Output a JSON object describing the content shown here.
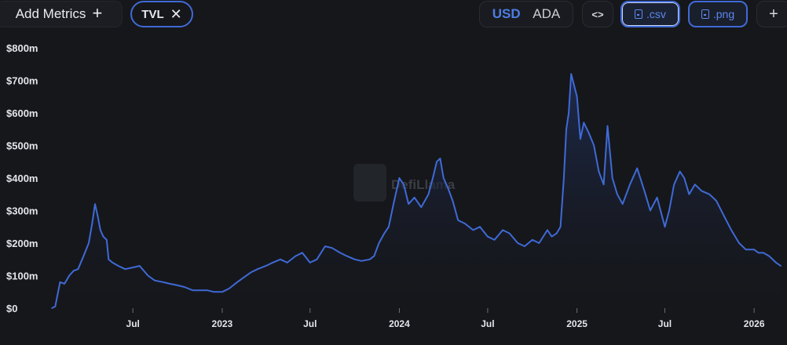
{
  "toolbar": {
    "add_metrics_label": "Add Metrics",
    "add_icon": "plus-icon",
    "metric_chip": {
      "label": "TVL",
      "remove_icon": "close-icon"
    },
    "currency_options": [
      "USD",
      "ADA"
    ],
    "currency_selected": "USD",
    "embed_label": "<>",
    "csv_label": ".csv",
    "png_label": ".png",
    "more_label": "+"
  },
  "watermark": "DefiLlama",
  "colors": {
    "background": "#16171b",
    "line": "#3f6ad6",
    "accent": "#4b7ee6",
    "fill_top": "#1d2c52"
  },
  "chart_data": {
    "type": "area",
    "title": "",
    "xlabel": "",
    "ylabel": "",
    "y_tick_labels": [
      "$0",
      "$100m",
      "$200m",
      "$300m",
      "$400m",
      "$500m",
      "$600m",
      "$700m",
      "$800m"
    ],
    "ylim": [
      0,
      800000000
    ],
    "x_tick_labels": [
      "Jul",
      "2023",
      "Jul",
      "2024",
      "Jul",
      "2025",
      "Jul",
      "2026"
    ],
    "x_tick_dates": [
      "2022-07-01",
      "2023-01-01",
      "2023-07-01",
      "2024-01-01",
      "2024-07-01",
      "2025-01-01",
      "2025-07-01",
      "2026-01-01"
    ],
    "grid": false,
    "series": [
      {
        "name": "TVL",
        "x": [
          "2022-01-15",
          "2022-01-22",
          "2022-02-01",
          "2022-02-10",
          "2022-02-20",
          "2022-03-01",
          "2022-03-10",
          "2022-03-20",
          "2022-04-01",
          "2022-04-08",
          "2022-04-14",
          "2022-04-20",
          "2022-04-25",
          "2022-05-01",
          "2022-05-08",
          "2022-05-12",
          "2022-05-20",
          "2022-06-01",
          "2022-06-15",
          "2022-07-01",
          "2022-07-15",
          "2022-08-01",
          "2022-08-15",
          "2022-09-01",
          "2022-09-15",
          "2022-10-01",
          "2022-10-15",
          "2022-11-01",
          "2022-11-15",
          "2022-12-01",
          "2022-12-15",
          "2023-01-01",
          "2023-01-15",
          "2023-02-01",
          "2023-02-15",
          "2023-03-01",
          "2023-03-15",
          "2023-04-01",
          "2023-04-15",
          "2023-05-01",
          "2023-05-15",
          "2023-06-01",
          "2023-06-15",
          "2023-07-01",
          "2023-07-15",
          "2023-08-01",
          "2023-08-15",
          "2023-09-01",
          "2023-09-15",
          "2023-10-01",
          "2023-10-15",
          "2023-11-01",
          "2023-11-10",
          "2023-11-20",
          "2023-12-01",
          "2023-12-10",
          "2023-12-20",
          "2024-01-01",
          "2024-01-10",
          "2024-01-20",
          "2024-02-01",
          "2024-02-15",
          "2024-03-01",
          "2024-03-10",
          "2024-03-18",
          "2024-03-25",
          "2024-04-01",
          "2024-04-10",
          "2024-04-20",
          "2024-05-01",
          "2024-05-15",
          "2024-06-01",
          "2024-06-15",
          "2024-07-01",
          "2024-07-15",
          "2024-08-01",
          "2024-08-15",
          "2024-09-01",
          "2024-09-15",
          "2024-10-01",
          "2024-10-15",
          "2024-11-01",
          "2024-11-10",
          "2024-11-20",
          "2024-11-28",
          "2024-12-05",
          "2024-12-10",
          "2024-12-15",
          "2024-12-20",
          "2025-01-01",
          "2025-01-08",
          "2025-01-15",
          "2025-01-25",
          "2025-02-05",
          "2025-02-15",
          "2025-02-25",
          "2025-03-05",
          "2025-03-15",
          "2025-03-25",
          "2025-04-05",
          "2025-04-20",
          "2025-05-05",
          "2025-05-20",
          "2025-06-01",
          "2025-06-15",
          "2025-07-01",
          "2025-07-10",
          "2025-07-20",
          "2025-08-01",
          "2025-08-10",
          "2025-08-20",
          "2025-09-01",
          "2025-09-15",
          "2025-10-01",
          "2025-10-15",
          "2025-11-01",
          "2025-11-15",
          "2025-12-01",
          "2025-12-15",
          "2026-01-01",
          "2026-01-10",
          "2026-01-20",
          "2026-02-01",
          "2026-02-15",
          "2026-02-25"
        ],
        "y": [
          0,
          5000000,
          80000000,
          75000000,
          100000000,
          115000000,
          120000000,
          155000000,
          200000000,
          260000000,
          320000000,
          280000000,
          240000000,
          220000000,
          210000000,
          150000000,
          140000000,
          130000000,
          120000000,
          125000000,
          130000000,
          100000000,
          85000000,
          80000000,
          75000000,
          70000000,
          65000000,
          55000000,
          55000000,
          55000000,
          50000000,
          50000000,
          60000000,
          80000000,
          95000000,
          110000000,
          120000000,
          130000000,
          140000000,
          150000000,
          140000000,
          160000000,
          170000000,
          140000000,
          150000000,
          190000000,
          185000000,
          170000000,
          160000000,
          150000000,
          145000000,
          150000000,
          160000000,
          200000000,
          230000000,
          250000000,
          320000000,
          400000000,
          380000000,
          320000000,
          340000000,
          310000000,
          350000000,
          400000000,
          450000000,
          460000000,
          400000000,
          370000000,
          330000000,
          270000000,
          260000000,
          240000000,
          250000000,
          220000000,
          210000000,
          240000000,
          230000000,
          200000000,
          190000000,
          210000000,
          200000000,
          240000000,
          220000000,
          230000000,
          250000000,
          400000000,
          550000000,
          600000000,
          720000000,
          650000000,
          520000000,
          570000000,
          540000000,
          500000000,
          420000000,
          380000000,
          560000000,
          400000000,
          350000000,
          320000000,
          380000000,
          430000000,
          360000000,
          300000000,
          340000000,
          250000000,
          300000000,
          380000000,
          420000000,
          400000000,
          350000000,
          380000000,
          360000000,
          350000000,
          330000000,
          280000000,
          240000000,
          200000000,
          180000000,
          180000000,
          170000000,
          170000000,
          160000000,
          140000000,
          130000000
        ]
      }
    ]
  }
}
